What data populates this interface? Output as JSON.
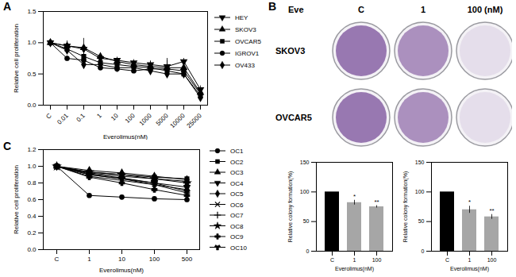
{
  "panel_labels": [
    "A",
    "B",
    "C"
  ],
  "plates": {
    "treatment_label": "Eve",
    "columns": [
      "C",
      "1",
      "100 (nM)"
    ],
    "rows": [
      "SKOV3",
      "OVCAR5"
    ]
  },
  "chart_data": [
    {
      "type": "line",
      "categories": [
        "C",
        "0.01",
        "0.1",
        "1",
        "10",
        "100",
        "1000",
        "5000",
        "10000",
        "25000"
      ],
      "x_label": "Everolimus(nM)",
      "y_label": "Relative cell proliferation",
      "ylim": [
        0,
        1.5
      ],
      "yticks": [
        {
          "value": 0,
          "label": "0.0"
        },
        {
          "value": 0.5,
          "label": "0.5"
        },
        {
          "value": 1,
          "label": "1.0"
        },
        {
          "value": 1.5,
          "label": "1.5"
        }
      ],
      "legend": "right",
      "series": [
        {
          "name": "HEY",
          "color": "#000000",
          "marker": "triangle-down",
          "values": [
            1,
            0.95,
            0.9,
            0.75,
            0.72,
            0.68,
            0.65,
            0.62,
            0.7,
            0.25
          ],
          "errors": [
            0,
            0.05,
            0.08,
            0.06,
            0.05,
            0.05,
            0.06,
            0.1,
            0.05,
            0.06
          ]
        },
        {
          "name": "SKOV3",
          "color": "#000000",
          "marker": "triangle",
          "values": [
            1,
            0.95,
            0.92,
            0.78,
            0.7,
            0.65,
            0.62,
            0.6,
            0.6,
            0.2
          ],
          "errors": [
            0,
            0.08,
            0.15,
            0.05,
            0.05,
            0.06,
            0.08,
            0.15,
            0.08,
            0.05
          ]
        },
        {
          "name": "OVCAR5",
          "color": "#000000",
          "marker": "square",
          "values": [
            1,
            0.9,
            0.78,
            0.68,
            0.65,
            0.62,
            0.6,
            0.55,
            0.5,
            0.15
          ],
          "errors": [
            0,
            0.05,
            0.06,
            0.05,
            0.05,
            0.05,
            0.05,
            0.06,
            0.05,
            0.04
          ]
        },
        {
          "name": "IGROV1",
          "color": "#000000",
          "marker": "circle",
          "values": [
            1,
            0.75,
            0.72,
            0.6,
            0.58,
            0.55,
            0.58,
            0.58,
            0.55,
            0.18
          ],
          "errors": [
            0,
            0.04,
            0.05,
            0.04,
            0.04,
            0.04,
            0.05,
            0.05,
            0.05,
            0.04
          ]
        },
        {
          "name": "OV433",
          "color": "#000000",
          "marker": "diamond",
          "values": [
            1,
            0.88,
            0.65,
            0.65,
            0.6,
            0.6,
            0.55,
            0.5,
            0.5,
            0.12
          ],
          "errors": [
            0,
            0.05,
            0.05,
            0.05,
            0.05,
            0.05,
            0.05,
            0.05,
            0.05,
            0.03
          ]
        }
      ]
    },
    {
      "type": "line",
      "categories": [
        "C",
        "1",
        "10",
        "100",
        "500"
      ],
      "x_label": "Everolimus(nM)",
      "y_label": "Relative cell proliferation",
      "ylim": [
        0,
        1.2
      ],
      "yticks": [
        {
          "value": 0,
          "label": "0.0"
        },
        {
          "value": 0.2,
          "label": "0.2"
        },
        {
          "value": 0.4,
          "label": "0.4"
        },
        {
          "value": 0.6,
          "label": "0.6"
        },
        {
          "value": 0.8,
          "label": "0.8"
        },
        {
          "value": 1,
          "label": "1.0"
        },
        {
          "value": 1.2,
          "label": "1.2"
        }
      ],
      "legend": "right",
      "series": [
        {
          "name": "OC1",
          "color": "#000000",
          "marker": "circle",
          "values": [
            1,
            0.65,
            0.63,
            0.61,
            0.6
          ]
        },
        {
          "name": "OC2",
          "color": "#000000",
          "marker": "square",
          "values": [
            1,
            0.93,
            0.9,
            0.87,
            0.85
          ]
        },
        {
          "name": "OC3",
          "color": "#000000",
          "marker": "triangle",
          "values": [
            1,
            0.92,
            0.88,
            0.85,
            0.82
          ]
        },
        {
          "name": "OC4",
          "color": "#000000",
          "marker": "triangle-down",
          "values": [
            1,
            0.9,
            0.85,
            0.8,
            0.75
          ]
        },
        {
          "name": "OC5",
          "color": "#000000",
          "marker": "diamond",
          "values": [
            1,
            0.95,
            0.92,
            0.88,
            0.84
          ]
        },
        {
          "name": "OC6",
          "color": "#000000",
          "marker": "times",
          "values": [
            1,
            0.88,
            0.83,
            0.78,
            0.72
          ]
        },
        {
          "name": "OC7",
          "color": "#000000",
          "marker": "plus",
          "values": [
            1,
            0.9,
            0.85,
            0.78,
            0.68
          ]
        },
        {
          "name": "OC8",
          "color": "#000000",
          "marker": "star",
          "values": [
            1,
            0.93,
            0.9,
            0.85,
            0.8
          ]
        },
        {
          "name": "OC9",
          "color": "#000000",
          "marker": "cross",
          "values": [
            1,
            0.87,
            0.8,
            0.72,
            0.65
          ]
        },
        {
          "name": "OC10",
          "color": "#000000",
          "marker": "wye",
          "values": [
            1,
            0.91,
            0.86,
            0.8,
            0.7
          ]
        }
      ]
    },
    {
      "type": "bar",
      "categories": [
        "C",
        "1",
        "100"
      ],
      "x_label": "Everolimus(nM)",
      "y_label": "Relative colony formation(%)",
      "values": [
        100,
        82,
        75
      ],
      "errors": [
        0,
        4,
        2
      ],
      "annotations": [
        null,
        "*",
        "**"
      ],
      "colors": [
        "#000000",
        "#a6a6a6",
        "#a6a6a6"
      ],
      "ylim": [
        0,
        150
      ],
      "yticks": [
        0,
        50,
        100,
        150
      ]
    },
    {
      "type": "bar",
      "categories": [
        "C",
        "1",
        "100"
      ],
      "x_label": "Everolimus(nM)",
      "y_label": "Relative colony formation(%)",
      "values": [
        100,
        70,
        58
      ],
      "errors": [
        0,
        6,
        4
      ],
      "annotations": [
        null,
        "*",
        "**"
      ],
      "colors": [
        "#000000",
        "#a6a6a6",
        "#a6a6a6"
      ],
      "ylim": [
        0,
        150
      ],
      "yticks": [
        0,
        50,
        100,
        150
      ]
    }
  ]
}
